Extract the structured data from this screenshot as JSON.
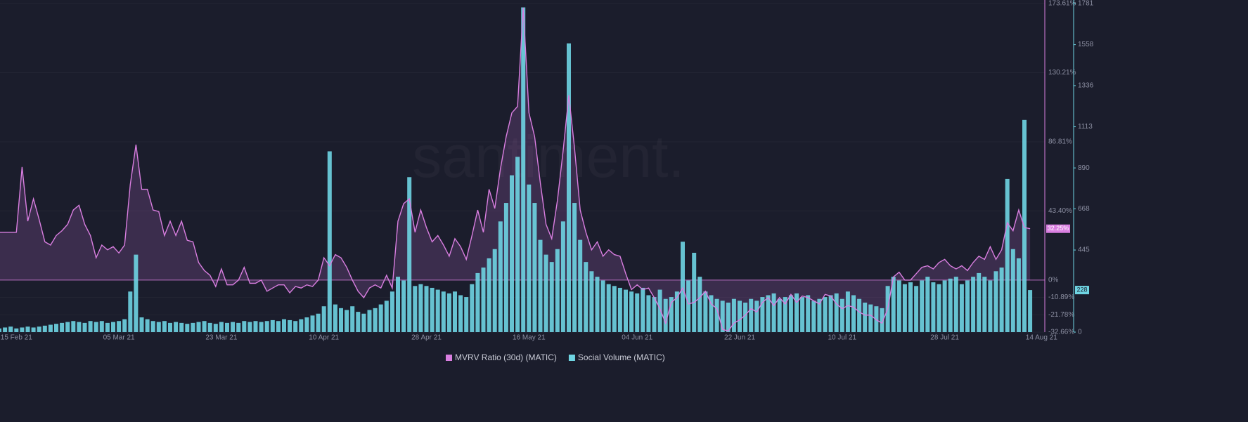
{
  "chart_data": {
    "type": "bar-line",
    "watermark": "santiment.",
    "categories": [
      null,
      null,
      null,
      "15 Feb 21",
      null,
      null,
      null,
      null,
      null,
      null,
      null,
      null,
      null,
      null,
      null,
      null,
      null,
      null,
      null,
      null,
      null,
      "05 Mar 21",
      null,
      null,
      null,
      null,
      null,
      null,
      null,
      null,
      null,
      null,
      null,
      null,
      null,
      null,
      null,
      null,
      null,
      "23 Mar 21",
      null,
      null,
      null,
      null,
      null,
      null,
      null,
      null,
      null,
      null,
      null,
      null,
      null,
      null,
      null,
      null,
      null,
      "10 Apr 21",
      null,
      null,
      null,
      null,
      null,
      null,
      null,
      null,
      null,
      null,
      null,
      null,
      null,
      null,
      null,
      null,
      null,
      "28 Apr 21",
      null,
      null,
      null,
      null,
      null,
      null,
      null,
      null,
      null,
      null,
      null,
      null,
      null,
      null,
      null,
      null,
      null,
      "16 May 21",
      null,
      null,
      null,
      null,
      null,
      null,
      null,
      null,
      null,
      null,
      null,
      null,
      null,
      null,
      null,
      null,
      null,
      null,
      "04 Jun 21",
      null,
      null,
      null,
      null,
      null,
      null,
      null,
      null,
      null,
      null,
      null,
      null,
      null,
      null,
      null,
      null,
      null,
      "22 Jun 21",
      null,
      null,
      null,
      null,
      null,
      null,
      null,
      null,
      null,
      null,
      null,
      null,
      null,
      null,
      null,
      null,
      null,
      "10 Jul 21",
      null,
      null,
      null,
      null,
      null,
      null,
      null,
      null,
      null,
      null,
      null,
      null,
      null,
      null,
      null,
      null,
      null,
      "28 Jul 21",
      null,
      null,
      null,
      null,
      null,
      null,
      null,
      null,
      null,
      null,
      null,
      null,
      null,
      null,
      null,
      null,
      "14 Aug 21"
    ],
    "series": [
      {
        "name": "MVRV Ratio (30d) (MATIC)",
        "color": "#d97ee0",
        "type": "line",
        "axis": "y",
        "current_label": "32.25%",
        "values": [
          30,
          30,
          30,
          30,
          71,
          37,
          51,
          38,
          24,
          22,
          28,
          31,
          35,
          44,
          47,
          35,
          28,
          14,
          22,
          19,
          21,
          17,
          22,
          60,
          85,
          57,
          57,
          44,
          43,
          28,
          37,
          28,
          37,
          25,
          24,
          11,
          6,
          3,
          -4,
          7,
          -3,
          -3,
          0,
          8,
          -2,
          -2,
          0,
          -7,
          -5,
          -3,
          -3,
          -8,
          -4,
          -5,
          -3,
          -4,
          0,
          14,
          9,
          16,
          14,
          8,
          0,
          -7,
          -11,
          -5,
          -3,
          -5,
          3,
          -5,
          37,
          48,
          51,
          30,
          44,
          33,
          24,
          28,
          22,
          15,
          26,
          21,
          13,
          28,
          44,
          30,
          57,
          45,
          70,
          90,
          105,
          109,
          171,
          105,
          90,
          61,
          35,
          26,
          50,
          81,
          116,
          83,
          44,
          30,
          19,
          24,
          15,
          19,
          16,
          15,
          4,
          -6,
          -3,
          -6,
          -5,
          -11,
          -18,
          -27,
          -14,
          -11,
          -5,
          -15,
          -14,
          -11,
          -7,
          -15,
          -18,
          -31,
          -32,
          -27,
          -25,
          -22,
          -18,
          -20,
          -14,
          -11,
          -16,
          -11,
          -15,
          -9,
          -14,
          -10,
          -11,
          -13,
          -15,
          -9,
          -10,
          -15,
          -18,
          -16,
          -17,
          -20,
          -22,
          -22,
          -25,
          -27,
          -18,
          2,
          5,
          0,
          0,
          4,
          8,
          9,
          7,
          11,
          13,
          9,
          7,
          9,
          6,
          11,
          15,
          13,
          21,
          13,
          19,
          36,
          31,
          44,
          33,
          32.25,
          null,
          null
        ]
      },
      {
        "name": "Social Volume (MATIC)",
        "color": "#6fd5e3",
        "type": "bar",
        "axis": "y2",
        "values": [
          20,
          25,
          30,
          20,
          25,
          30,
          25,
          30,
          35,
          40,
          45,
          50,
          55,
          60,
          55,
          50,
          60,
          55,
          60,
          50,
          55,
          60,
          70,
          220,
          420,
          80,
          70,
          60,
          55,
          60,
          50,
          55,
          50,
          45,
          50,
          55,
          60,
          50,
          45,
          55,
          50,
          55,
          50,
          60,
          55,
          60,
          55,
          60,
          65,
          60,
          70,
          65,
          60,
          70,
          80,
          90,
          100,
          140,
          980,
          150,
          130,
          120,
          140,
          110,
          100,
          120,
          130,
          150,
          170,
          220,
          300,
          280,
          840,
          250,
          260,
          250,
          240,
          230,
          220,
          210,
          220,
          200,
          190,
          260,
          320,
          350,
          400,
          450,
          600,
          700,
          850,
          950,
          1760,
          800,
          700,
          500,
          420,
          380,
          450,
          600,
          1565,
          700,
          500,
          380,
          330,
          300,
          280,
          260,
          250,
          240,
          230,
          220,
          210,
          240,
          200,
          190,
          230,
          180,
          190,
          220,
          490,
          280,
          430,
          300,
          220,
          200,
          180,
          170,
          160,
          180,
          170,
          160,
          180,
          170,
          190,
          200,
          210,
          180,
          190,
          200,
          210,
          190,
          200,
          170,
          180,
          190,
          200,
          210,
          180,
          220,
          200,
          180,
          160,
          150,
          140,
          130,
          250,
          300,
          280,
          260,
          270,
          250,
          280,
          300,
          270,
          260,
          280,
          290,
          300,
          260,
          280,
          300,
          320,
          300,
          280,
          330,
          350,
          830,
          450,
          400,
          1150,
          228,
          null,
          null
        ]
      }
    ],
    "ylim": [
      -32.66,
      173.61
    ],
    "yticks": [
      {
        "value": -32.66,
        "label": "-32.66%"
      },
      {
        "value": -21.78,
        "label": "-21.78%"
      },
      {
        "value": -10.89,
        "label": "-10.89%"
      },
      {
        "value": 0,
        "label": "0%"
      },
      {
        "value": 43.4,
        "label": "43.40%"
      },
      {
        "value": 86.81,
        "label": "86.81%"
      },
      {
        "value": 130.21,
        "label": "130.21%"
      },
      {
        "value": 173.61,
        "label": "173.61%"
      }
    ],
    "y2lim": [
      0,
      1781
    ],
    "y2ticks": [
      0,
      445,
      668,
      890,
      1113,
      1336,
      1558,
      1781
    ],
    "grid": true
  }
}
